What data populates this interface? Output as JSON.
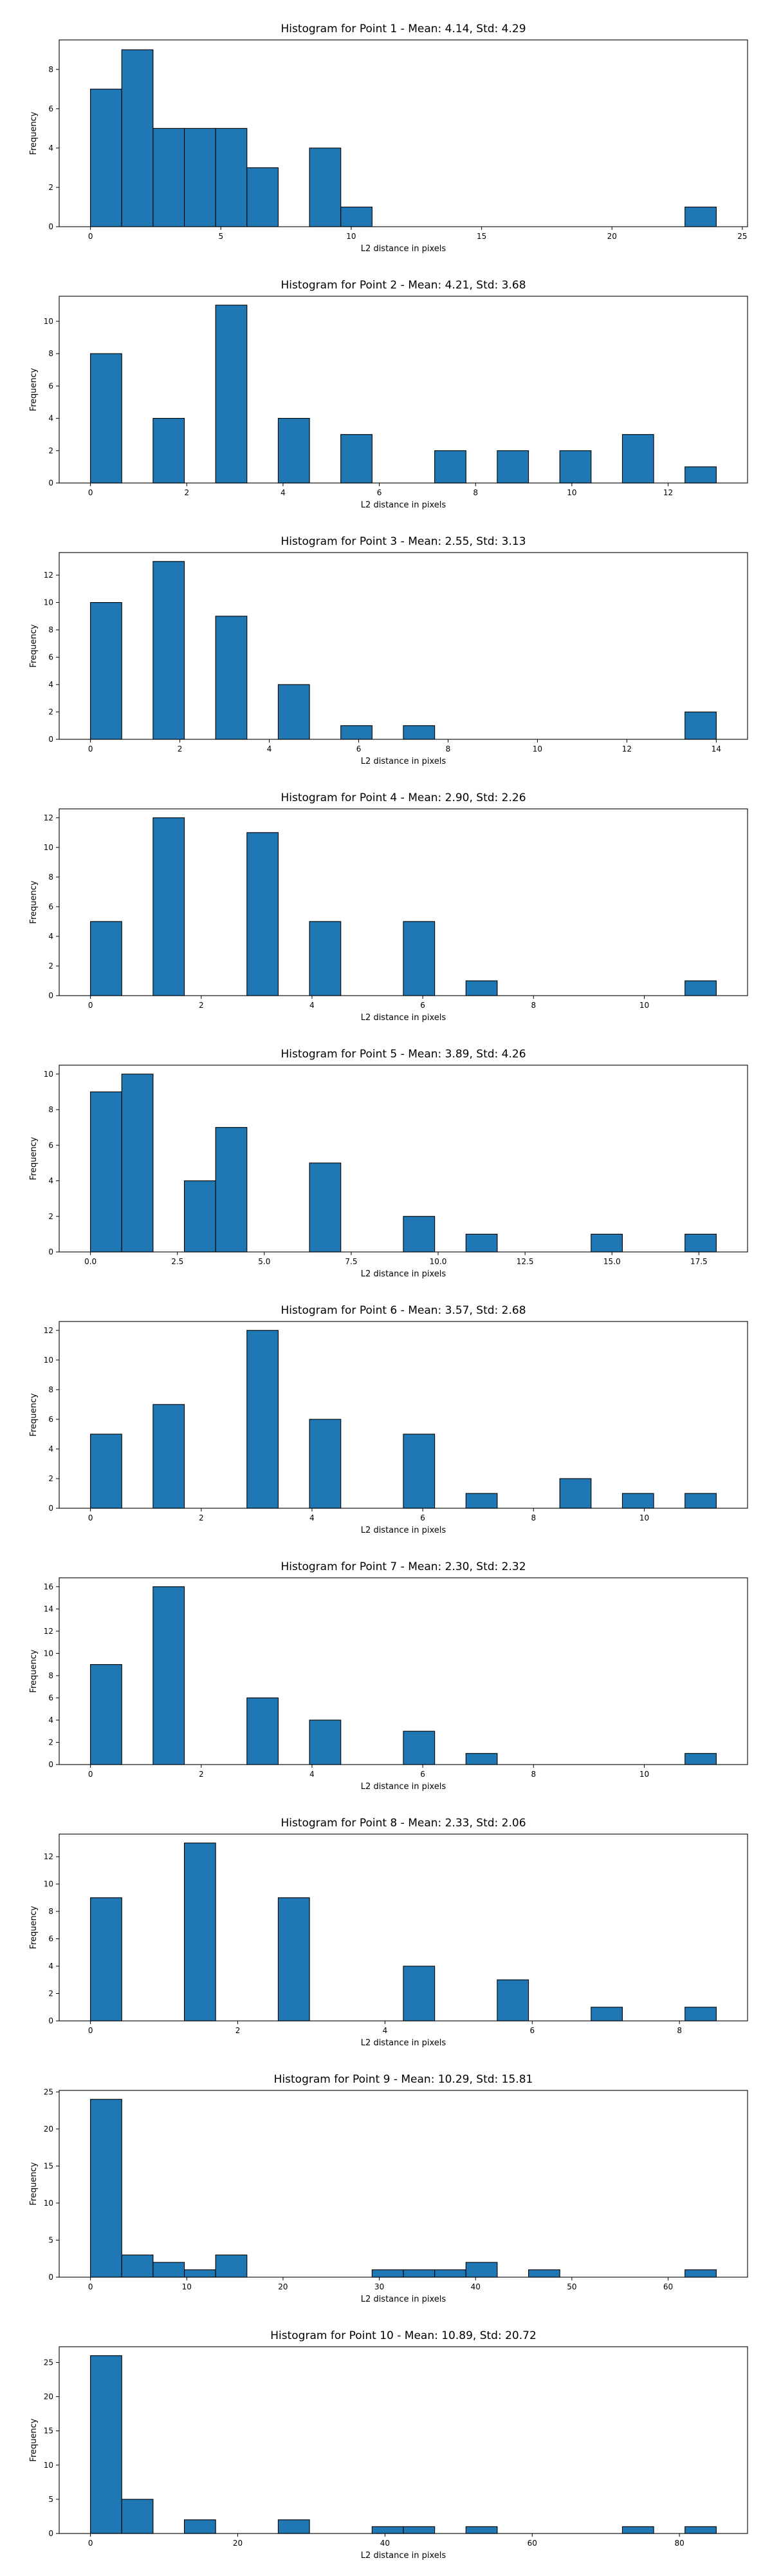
{
  "chart_data": [
    {
      "type": "bar",
      "title": "Histogram for Point 1 - Mean: 4.14, Std: 4.29",
      "xlabel": "L2 distance in pixels",
      "ylabel": "Frequency",
      "xlim": [
        -1.2,
        25.2
      ],
      "ylim": [
        0,
        9.5
      ],
      "xticks": [
        0,
        5,
        10,
        15,
        20,
        25
      ],
      "yticks": [
        0,
        2,
        4,
        6,
        8
      ],
      "bin_edges": [
        0,
        1.2,
        2.4,
        3.6,
        4.8,
        6.0,
        7.2,
        8.4,
        9.6,
        10.8,
        12.0,
        13.2,
        14.4,
        15.6,
        16.8,
        18.0,
        19.2,
        20.4,
        21.6,
        22.8,
        24.0
      ],
      "values": [
        7,
        9,
        5,
        5,
        5,
        3,
        0,
        4,
        1,
        0,
        0,
        0,
        0,
        0,
        0,
        0,
        0,
        0,
        0,
        1
      ],
      "grid": false,
      "color": "#1f77b4"
    },
    {
      "type": "bar",
      "title": "Histogram for Point 2 - Mean: 4.21, Std: 3.68",
      "xlabel": "L2 distance in pixels",
      "ylabel": "Frequency",
      "xlim": [
        -0.65,
        13.65
      ],
      "ylim": [
        0,
        11.55
      ],
      "xticks": [
        0,
        2,
        4,
        6,
        8,
        10,
        12
      ],
      "yticks": [
        0,
        2,
        4,
        6,
        8,
        10
      ],
      "bin_edges": [
        0,
        0.65,
        1.3,
        1.95,
        2.6,
        3.25,
        3.9,
        4.55,
        5.2,
        5.85,
        6.5,
        7.15,
        7.8,
        8.45,
        9.1,
        9.75,
        10.4,
        11.05,
        11.7,
        12.35,
        13.0
      ],
      "values": [
        8,
        0,
        4,
        0,
        11,
        0,
        4,
        0,
        3,
        0,
        0,
        2,
        0,
        2,
        0,
        2,
        0,
        3,
        0,
        1
      ],
      "grid": false,
      "color": "#1f77b4"
    },
    {
      "type": "bar",
      "title": "Histogram for Point 3 - Mean: 2.55, Std: 3.13",
      "xlabel": "L2 distance in pixels",
      "ylabel": "Frequency",
      "xlim": [
        -0.7,
        14.7
      ],
      "ylim": [
        0,
        13.65
      ],
      "xticks": [
        0,
        2,
        4,
        6,
        8,
        10,
        12,
        14
      ],
      "yticks": [
        0,
        2,
        4,
        6,
        8,
        10,
        12
      ],
      "bin_edges": [
        0,
        0.7,
        1.4,
        2.1,
        2.8,
        3.5,
        4.2,
        4.9,
        5.6,
        6.3,
        7.0,
        7.7,
        8.4,
        9.1,
        9.8,
        10.5,
        11.2,
        11.9,
        12.6,
        13.3,
        14.0
      ],
      "values": [
        10,
        0,
        13,
        0,
        9,
        0,
        4,
        0,
        1,
        0,
        1,
        0,
        0,
        0,
        0,
        0,
        0,
        0,
        0,
        2
      ],
      "grid": false,
      "color": "#1f77b4"
    },
    {
      "type": "bar",
      "title": "Histogram for Point 4 - Mean: 2.90, Std: 2.26",
      "xlabel": "L2 distance in pixels",
      "ylabel": "Frequency",
      "xlim": [
        -0.565,
        11.865
      ],
      "ylim": [
        0,
        12.6
      ],
      "xticks": [
        0,
        2,
        4,
        6,
        8,
        10
      ],
      "yticks": [
        0,
        2,
        4,
        6,
        8,
        10,
        12
      ],
      "bin_edges": [
        0,
        0.565,
        1.13,
        1.695,
        2.26,
        2.825,
        3.39,
        3.955,
        4.52,
        5.085,
        5.65,
        6.215,
        6.78,
        7.345,
        7.91,
        8.475,
        9.04,
        9.605,
        10.17,
        10.735,
        11.3
      ],
      "values": [
        5,
        0,
        12,
        0,
        0,
        11,
        0,
        5,
        0,
        0,
        5,
        0,
        1,
        0,
        0,
        0,
        0,
        0,
        0,
        1
      ],
      "grid": false,
      "color": "#1f77b4"
    },
    {
      "type": "bar",
      "title": "Histogram for Point 5 - Mean: 3.89, Std: 4.26",
      "xlabel": "L2 distance in pixels",
      "ylabel": "Frequency",
      "xlim": [
        -0.9,
        18.9
      ],
      "ylim": [
        0,
        10.5
      ],
      "xticks": [
        0.0,
        2.5,
        5.0,
        7.5,
        10.0,
        12.5,
        15.0,
        17.5
      ],
      "xtick_labels": [
        "0.0",
        "2.5",
        "5.0",
        "7.5",
        "10.0",
        "12.5",
        "15.0",
        "17.5"
      ],
      "yticks": [
        0,
        2,
        4,
        6,
        8,
        10
      ],
      "bin_edges": [
        0,
        0.9,
        1.8,
        2.7,
        3.6,
        4.5,
        5.4,
        6.3,
        7.2,
        8.1,
        9.0,
        9.9,
        10.8,
        11.7,
        12.6,
        13.5,
        14.4,
        15.3,
        16.2,
        17.1,
        18.0
      ],
      "values": [
        9,
        10,
        0,
        4,
        7,
        0,
        0,
        5,
        0,
        0,
        2,
        0,
        1,
        0,
        0,
        0,
        1,
        0,
        0,
        1
      ],
      "grid": false,
      "color": "#1f77b4"
    },
    {
      "type": "bar",
      "title": "Histogram for Point 6 - Mean: 3.57, Std: 2.68",
      "xlabel": "L2 distance in pixels",
      "ylabel": "Frequency",
      "xlim": [
        -0.565,
        11.865
      ],
      "ylim": [
        0,
        12.6
      ],
      "xticks": [
        0,
        2,
        4,
        6,
        8,
        10
      ],
      "yticks": [
        0,
        2,
        4,
        6,
        8,
        10,
        12
      ],
      "bin_edges": [
        0,
        0.565,
        1.13,
        1.695,
        2.26,
        2.825,
        3.39,
        3.955,
        4.52,
        5.085,
        5.65,
        6.215,
        6.78,
        7.345,
        7.91,
        8.475,
        9.04,
        9.605,
        10.17,
        10.735,
        11.3
      ],
      "values": [
        5,
        0,
        7,
        0,
        0,
        12,
        0,
        6,
        0,
        0,
        5,
        0,
        1,
        0,
        0,
        2,
        0,
        1,
        0,
        1
      ],
      "grid": false,
      "color": "#1f77b4"
    },
    {
      "type": "bar",
      "title": "Histogram for Point 7 - Mean: 2.30, Std: 2.32",
      "xlabel": "L2 distance in pixels",
      "ylabel": "Frequency",
      "xlim": [
        -0.565,
        11.865
      ],
      "ylim": [
        0,
        16.8
      ],
      "xticks": [
        0,
        2,
        4,
        6,
        8,
        10
      ],
      "yticks": [
        0,
        2,
        4,
        6,
        8,
        10,
        12,
        14,
        16
      ],
      "bin_edges": [
        0,
        0.565,
        1.13,
        1.695,
        2.26,
        2.825,
        3.39,
        3.955,
        4.52,
        5.085,
        5.65,
        6.215,
        6.78,
        7.345,
        7.91,
        8.475,
        9.04,
        9.605,
        10.17,
        10.735,
        11.3
      ],
      "values": [
        9,
        0,
        16,
        0,
        0,
        6,
        0,
        4,
        0,
        0,
        3,
        0,
        1,
        0,
        0,
        0,
        0,
        0,
        0,
        1
      ],
      "grid": false,
      "color": "#1f77b4"
    },
    {
      "type": "bar",
      "title": "Histogram for Point 8 - Mean: 2.33, Std: 2.06",
      "xlabel": "L2 distance in pixels",
      "ylabel": "Frequency",
      "xlim": [
        -0.425,
        8.925
      ],
      "ylim": [
        0,
        13.65
      ],
      "xticks": [
        0,
        2,
        4,
        6,
        8
      ],
      "yticks": [
        0,
        2,
        4,
        6,
        8,
        10,
        12
      ],
      "bin_edges": [
        0,
        0.425,
        0.85,
        1.275,
        1.7,
        2.125,
        2.55,
        2.975,
        3.4,
        3.825,
        4.25,
        4.675,
        5.1,
        5.525,
        5.95,
        6.375,
        6.8,
        7.225,
        7.65,
        8.075,
        8.5
      ],
      "values": [
        9,
        0,
        0,
        13,
        0,
        0,
        9,
        0,
        0,
        0,
        4,
        0,
        0,
        3,
        0,
        0,
        1,
        0,
        0,
        1
      ],
      "grid": false,
      "color": "#1f77b4"
    },
    {
      "type": "bar",
      "title": "Histogram for Point 9 - Mean: 10.29, Std: 15.81",
      "xlabel": "L2 distance in pixels",
      "ylabel": "Frequency",
      "xlim": [
        -3.25,
        68.25
      ],
      "ylim": [
        0,
        25.2
      ],
      "xticks": [
        0,
        10,
        20,
        30,
        40,
        50,
        60
      ],
      "yticks": [
        0,
        5,
        10,
        15,
        20,
        25
      ],
      "bin_edges": [
        0,
        3.25,
        6.5,
        9.75,
        13.0,
        16.25,
        19.5,
        22.75,
        26.0,
        29.25,
        32.5,
        35.75,
        39.0,
        42.25,
        45.5,
        48.75,
        52.0,
        55.25,
        58.5,
        61.75,
        65.0
      ],
      "values": [
        24,
        3,
        2,
        1,
        3,
        0,
        0,
        0,
        0,
        1,
        1,
        1,
        2,
        0,
        1,
        0,
        0,
        0,
        0,
        1
      ],
      "grid": false,
      "color": "#1f77b4"
    },
    {
      "type": "bar",
      "title": "Histogram for Point 10 - Mean: 10.89, Std: 20.72",
      "xlabel": "L2 distance in pixels",
      "ylabel": "Frequency",
      "xlim": [
        -4.25,
        89.25
      ],
      "ylim": [
        0,
        27.3
      ],
      "xticks": [
        0,
        20,
        40,
        60,
        80
      ],
      "yticks": [
        0,
        5,
        10,
        15,
        20,
        25
      ],
      "bin_edges": [
        0,
        4.25,
        8.5,
        12.75,
        17.0,
        21.25,
        25.5,
        29.75,
        34.0,
        38.25,
        42.5,
        46.75,
        51.0,
        55.25,
        59.5,
        63.75,
        68.0,
        72.25,
        76.5,
        80.75,
        85.0
      ],
      "values": [
        26,
        5,
        0,
        2,
        0,
        0,
        2,
        0,
        0,
        1,
        1,
        0,
        1,
        0,
        0,
        0,
        0,
        1,
        0,
        1
      ],
      "grid": false,
      "color": "#1f77b4"
    }
  ]
}
